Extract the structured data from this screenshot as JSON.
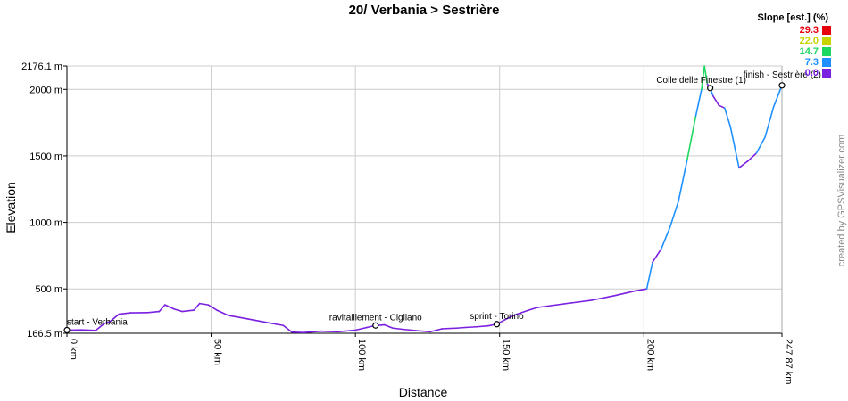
{
  "chart_data": {
    "type": "area",
    "title": "20/ Verbania > Sestrière",
    "xlabel": "Distance",
    "ylabel": "Elevation",
    "xlim": [
      0,
      247.87
    ],
    "ylim": [
      166.5,
      2176.1
    ],
    "x_ticks": [
      {
        "value": 0,
        "label": "0 km"
      },
      {
        "value": 50,
        "label": "50 km"
      },
      {
        "value": 100,
        "label": "100 km"
      },
      {
        "value": 150,
        "label": "150 km"
      },
      {
        "value": 200,
        "label": "200 km"
      },
      {
        "value": 247.87,
        "label": "247.87 km"
      }
    ],
    "y_ticks": [
      {
        "value": 166.5,
        "label": "166.5 m"
      },
      {
        "value": 500,
        "label": "500 m"
      },
      {
        "value": 1000,
        "label": "1000 m"
      },
      {
        "value": 1500,
        "label": "1500 m"
      },
      {
        "value": 2000,
        "label": "2000 m"
      },
      {
        "value": 2176.1,
        "label": "2176.1 m"
      }
    ],
    "grid": true,
    "legend": {
      "title": "Slope [est.] (%)",
      "placement": "top-right",
      "items": [
        {
          "label": "29.3",
          "color": "#e8000b"
        },
        {
          "label": "22.0",
          "color": "#c8d400"
        },
        {
          "label": "14.7",
          "color": "#1ed760"
        },
        {
          "label": "7.3",
          "color": "#1e90ff"
        },
        {
          "label": "0.0",
          "color": "#7b1fe0"
        }
      ]
    },
    "series": [
      {
        "x": [
          0,
          5,
          10,
          13,
          15,
          18,
          22,
          28,
          32,
          34,
          37,
          40,
          44,
          46,
          49,
          52,
          56,
          60,
          65,
          70,
          75,
          78,
          82,
          88,
          94,
          100,
          104,
          107,
          110,
          113,
          117,
          122,
          126,
          130,
          135,
          138,
          142,
          146,
          149,
          152,
          156,
          160,
          163,
          168,
          175,
          182,
          190,
          197,
          201,
          203,
          206,
          209,
          212,
          215,
          218,
          220,
          221,
          222,
          223,
          224,
          226,
          228,
          230,
          233,
          236,
          239,
          242,
          245,
          247.87
        ],
        "y": [
          190,
          192,
          188,
          240,
          255,
          310,
          320,
          322,
          330,
          380,
          350,
          330,
          340,
          390,
          380,
          340,
          300,
          285,
          265,
          245,
          225,
          175,
          172,
          182,
          178,
          190,
          210,
          225,
          230,
          205,
          195,
          185,
          178,
          200,
          205,
          210,
          215,
          222,
          235,
          270,
          310,
          340,
          360,
          375,
          395,
          415,
          450,
          485,
          500,
          700,
          800,
          960,
          1160,
          1470,
          1800,
          2000,
          2176.1,
          2040,
          2010,
          1950,
          1880,
          1860,
          1720,
          1410,
          1460,
          1520,
          1640,
          1870,
          2030
        ]
      }
    ],
    "annotations": [
      {
        "x": 0,
        "y": 190,
        "label": "start - Verbania"
      },
      {
        "x": 107,
        "y": 225,
        "label": "ravitaillement - Cigliano"
      },
      {
        "x": 149,
        "y": 235,
        "label": "sprint - Torino"
      },
      {
        "x": 223,
        "y": 2010,
        "label": "Colle delle Finestre (1)"
      },
      {
        "x": 247.87,
        "y": 2030,
        "label": "finish - Sestrière (2)"
      }
    ]
  },
  "watermark": "created by GPSVisualizer.com"
}
